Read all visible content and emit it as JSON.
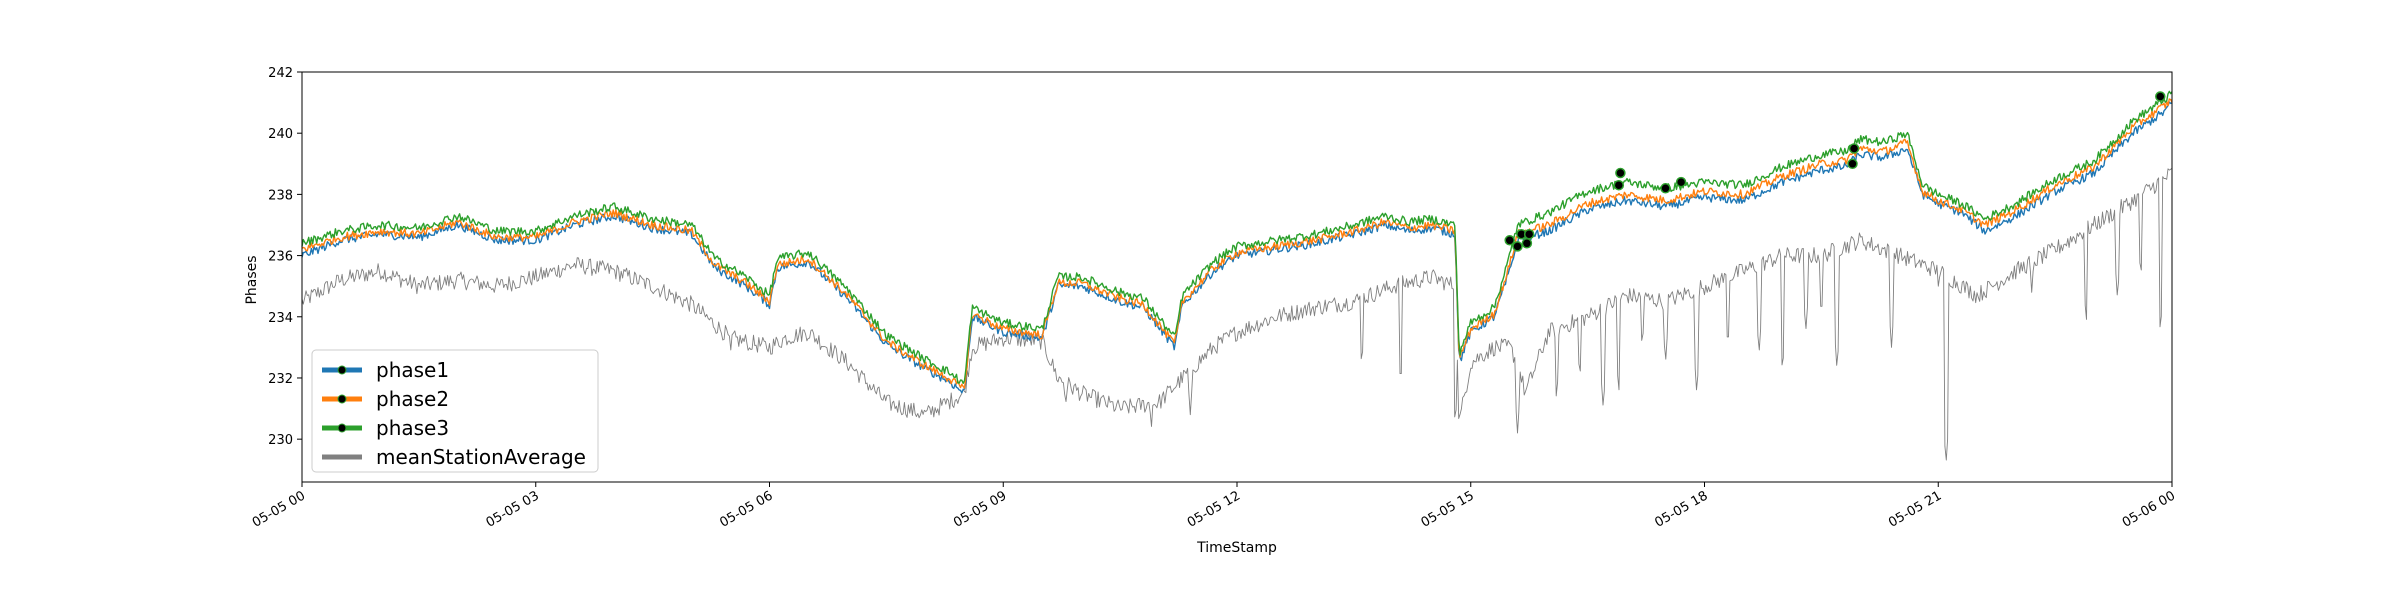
{
  "chart_data": {
    "type": "line",
    "title": "",
    "xlabel": "TimeStamp",
    "ylabel": "Phases",
    "x_range": [
      "2019-05-05 00:00",
      "2019-05-06 00:00"
    ],
    "ylim": [
      228.6,
      242.0
    ],
    "x_ticks": [
      "05-05 00",
      "05-05 03",
      "05-05 06",
      "05-05 09",
      "05-05 12",
      "05-05 15",
      "05-05 18",
      "05-05 21",
      "05-06 00"
    ],
    "x_tick_hours": [
      0,
      3,
      6,
      9,
      12,
      15,
      18,
      21,
      24
    ],
    "y_ticks": [
      230,
      232,
      234,
      236,
      238,
      240,
      242
    ],
    "grid": false,
    "legend": {
      "position": "lower-left"
    },
    "series": [
      {
        "name": "phase1",
        "color": "#1f77b4",
        "hours": [
          0,
          0.5,
          1.0,
          1.5,
          2.0,
          2.5,
          3.0,
          3.5,
          4.0,
          4.5,
          5.0,
          5.3,
          5.7,
          6.0,
          6.1,
          6.5,
          7.0,
          7.5,
          8.0,
          8.3,
          8.5,
          8.6,
          9.0,
          9.5,
          9.7,
          10.0,
          10.5,
          10.8,
          11.2,
          11.3,
          11.7,
          12.0,
          12.5,
          13.0,
          13.5,
          13.9,
          14.2,
          14.5,
          14.8,
          14.85,
          15.0,
          15.3,
          15.5,
          15.6,
          16.0,
          16.5,
          17.0,
          17.5,
          18.0,
          18.5,
          19.0,
          19.5,
          19.8,
          20.0,
          20.3,
          20.6,
          20.8,
          21.0,
          21.3,
          21.6,
          22.0,
          22.5,
          23.0,
          23.5,
          23.9,
          24.0
        ],
        "values": [
          236.0,
          236.5,
          236.7,
          236.6,
          237.0,
          236.5,
          236.5,
          237.0,
          237.3,
          236.9,
          236.7,
          235.6,
          235.0,
          234.4,
          235.6,
          235.8,
          234.6,
          233.1,
          232.3,
          231.9,
          231.5,
          234.0,
          233.5,
          233.3,
          235.0,
          235.0,
          234.5,
          234.3,
          233.0,
          234.4,
          235.5,
          236.0,
          236.2,
          236.4,
          236.7,
          237.0,
          236.8,
          236.9,
          236.7,
          232.5,
          233.5,
          234.0,
          235.5,
          236.5,
          236.8,
          237.5,
          237.8,
          237.6,
          237.9,
          237.8,
          238.4,
          238.8,
          238.9,
          239.3,
          239.2,
          239.5,
          238.0,
          237.7,
          237.4,
          236.8,
          237.3,
          238.1,
          238.7,
          240.0,
          240.7,
          241.0
        ]
      },
      {
        "name": "phase2",
        "color": "#ff7f0e",
        "hours": [
          0,
          0.5,
          1.0,
          1.5,
          2.0,
          2.5,
          3.0,
          3.5,
          4.0,
          4.5,
          5.0,
          5.3,
          5.7,
          6.0,
          6.1,
          6.5,
          7.0,
          7.5,
          8.0,
          8.3,
          8.5,
          8.6,
          9.0,
          9.5,
          9.7,
          10.0,
          10.5,
          10.8,
          11.2,
          11.3,
          11.7,
          12.0,
          12.5,
          13.0,
          13.5,
          13.9,
          14.2,
          14.5,
          14.8,
          14.85,
          15.0,
          15.3,
          15.5,
          15.6,
          16.0,
          16.5,
          17.0,
          17.5,
          18.0,
          18.5,
          19.0,
          19.5,
          19.8,
          20.0,
          20.3,
          20.6,
          20.8,
          21.0,
          21.3,
          21.6,
          22.0,
          22.5,
          23.0,
          23.5,
          23.9,
          24.0
        ],
        "values": [
          236.2,
          236.6,
          236.8,
          236.7,
          237.1,
          236.6,
          236.6,
          237.1,
          237.4,
          237.0,
          236.8,
          235.7,
          235.1,
          234.5,
          235.7,
          235.9,
          234.7,
          233.2,
          232.4,
          232.0,
          231.6,
          234.1,
          233.6,
          233.4,
          235.1,
          235.1,
          234.6,
          234.4,
          233.1,
          234.5,
          235.6,
          236.1,
          236.3,
          236.5,
          236.8,
          237.1,
          236.9,
          237.0,
          236.8,
          232.6,
          233.6,
          234.1,
          235.7,
          236.7,
          237.0,
          237.7,
          238.0,
          237.8,
          238.1,
          238.0,
          238.6,
          239.0,
          239.1,
          239.5,
          239.4,
          239.7,
          238.1,
          237.8,
          237.5,
          237.0,
          237.5,
          238.3,
          238.9,
          240.2,
          240.9,
          241.1
        ]
      },
      {
        "name": "phase3",
        "color": "#2ca02c",
        "hours": [
          0,
          0.5,
          1.0,
          1.5,
          2.0,
          2.5,
          3.0,
          3.5,
          4.0,
          4.5,
          5.0,
          5.3,
          5.7,
          6.0,
          6.1,
          6.5,
          7.0,
          7.5,
          8.0,
          8.3,
          8.5,
          8.6,
          9.0,
          9.5,
          9.7,
          10.0,
          10.5,
          10.8,
          11.2,
          11.3,
          11.7,
          12.0,
          12.5,
          13.0,
          13.5,
          13.9,
          14.2,
          14.5,
          14.8,
          14.85,
          15.0,
          15.3,
          15.5,
          15.6,
          16.0,
          16.5,
          17.0,
          17.5,
          18.0,
          18.5,
          19.0,
          19.5,
          19.8,
          20.0,
          20.3,
          20.6,
          20.8,
          21.0,
          21.3,
          21.6,
          22.0,
          22.5,
          23.0,
          23.5,
          23.9,
          24.0
        ],
        "values": [
          236.4,
          236.8,
          237.0,
          236.9,
          237.3,
          236.8,
          236.8,
          237.3,
          237.6,
          237.2,
          237.0,
          235.9,
          235.3,
          234.7,
          235.9,
          236.1,
          234.9,
          233.4,
          232.6,
          232.2,
          231.8,
          234.3,
          233.8,
          233.6,
          235.3,
          235.3,
          234.8,
          234.6,
          233.3,
          234.7,
          235.8,
          236.3,
          236.5,
          236.7,
          237.0,
          237.3,
          237.1,
          237.2,
          237.0,
          232.8,
          233.8,
          234.3,
          236.0,
          237.0,
          237.4,
          238.1,
          238.4,
          238.2,
          238.4,
          238.3,
          238.9,
          239.3,
          239.4,
          239.8,
          239.7,
          240.0,
          238.3,
          238.0,
          237.7,
          237.2,
          237.7,
          238.5,
          239.1,
          240.4,
          241.1,
          241.3
        ]
      },
      {
        "name": "meanStationAverage",
        "color": "#808080",
        "hours": [
          0,
          0.5,
          1.0,
          1.5,
          2.0,
          2.5,
          3.0,
          3.5,
          4.0,
          4.5,
          5.0,
          5.5,
          6.0,
          6.2,
          6.5,
          7.0,
          7.5,
          8.0,
          8.5,
          8.6,
          9.0,
          9.5,
          9.7,
          10.0,
          10.5,
          11.0,
          11.3,
          11.7,
          12.0,
          12.5,
          13.0,
          13.5,
          14.0,
          14.5,
          14.8,
          14.85,
          15.0,
          15.3,
          15.5,
          15.6,
          15.7,
          16.0,
          16.5,
          17.0,
          17.5,
          18.0,
          18.5,
          19.0,
          19.5,
          19.8,
          20.0,
          20.5,
          21.0,
          21.5,
          22.0,
          22.5,
          23.0,
          23.5,
          24.0
        ],
        "values": [
          234.5,
          235.2,
          235.5,
          235.0,
          235.2,
          235.0,
          235.3,
          235.7,
          235.5,
          235.0,
          234.4,
          233.3,
          233.0,
          233.3,
          233.5,
          232.5,
          231.2,
          230.8,
          231.5,
          233.0,
          233.3,
          233.2,
          232.0,
          231.5,
          231.0,
          231.2,
          232.0,
          233.0,
          233.5,
          234.0,
          234.3,
          234.5,
          235.0,
          235.3,
          235.0,
          230.5,
          232.5,
          233.0,
          233.0,
          232.5,
          231.5,
          233.5,
          234.0,
          234.7,
          234.5,
          235.0,
          235.5,
          236.0,
          236.0,
          236.3,
          236.5,
          236.0,
          235.5,
          234.7,
          235.5,
          236.2,
          237.0,
          237.8,
          238.7
        ]
      }
    ],
    "gray_dips": [
      {
        "hour": 5.5,
        "value": 232.8
      },
      {
        "hour": 5.75,
        "value": 232.7
      },
      {
        "hour": 7.7,
        "value": 231.8
      },
      {
        "hour": 9.8,
        "value": 231.0
      },
      {
        "hour": 10.9,
        "value": 230.3
      },
      {
        "hour": 11.4,
        "value": 230.8
      },
      {
        "hour": 13.6,
        "value": 232.4
      },
      {
        "hour": 14.1,
        "value": 231.8
      },
      {
        "hour": 14.8,
        "value": 230.5
      },
      {
        "hour": 15.6,
        "value": 230.2
      },
      {
        "hour": 16.1,
        "value": 231.3
      },
      {
        "hour": 16.4,
        "value": 232.0
      },
      {
        "hour": 16.7,
        "value": 231.0
      },
      {
        "hour": 16.9,
        "value": 231.5
      },
      {
        "hour": 17.2,
        "value": 233.0
      },
      {
        "hour": 17.5,
        "value": 232.5
      },
      {
        "hour": 17.9,
        "value": 231.5
      },
      {
        "hour": 18.3,
        "value": 233.0
      },
      {
        "hour": 18.7,
        "value": 232.8
      },
      {
        "hour": 19.0,
        "value": 232.2
      },
      {
        "hour": 19.3,
        "value": 233.5
      },
      {
        "hour": 19.5,
        "value": 234.0
      },
      {
        "hour": 19.7,
        "value": 232.3
      },
      {
        "hour": 20.4,
        "value": 233.0
      },
      {
        "hour": 20.8,
        "value": 236.3
      },
      {
        "hour": 21.0,
        "value": 235.0
      },
      {
        "hour": 21.1,
        "value": 229.2
      },
      {
        "hour": 22.2,
        "value": 234.8
      },
      {
        "hour": 22.9,
        "value": 233.8
      },
      {
        "hour": 23.3,
        "value": 234.6
      },
      {
        "hour": 23.6,
        "value": 235.3
      },
      {
        "hour": 23.85,
        "value": 233.5
      }
    ],
    "markers": [
      {
        "hour": 15.5,
        "value": 236.5
      },
      {
        "hour": 15.6,
        "value": 236.3
      },
      {
        "hour": 15.65,
        "value": 236.7
      },
      {
        "hour": 15.72,
        "value": 236.4
      },
      {
        "hour": 15.75,
        "value": 236.7
      },
      {
        "hour": 16.9,
        "value": 238.3
      },
      {
        "hour": 16.92,
        "value": 238.7
      },
      {
        "hour": 17.5,
        "value": 238.2
      },
      {
        "hour": 17.7,
        "value": 238.4
      },
      {
        "hour": 19.9,
        "value": 239.0
      },
      {
        "hour": 19.92,
        "value": 239.5
      },
      {
        "hour": 23.85,
        "value": 241.2
      }
    ],
    "marker_color": "#000000",
    "marker_edge_color": "#2ca02c"
  }
}
